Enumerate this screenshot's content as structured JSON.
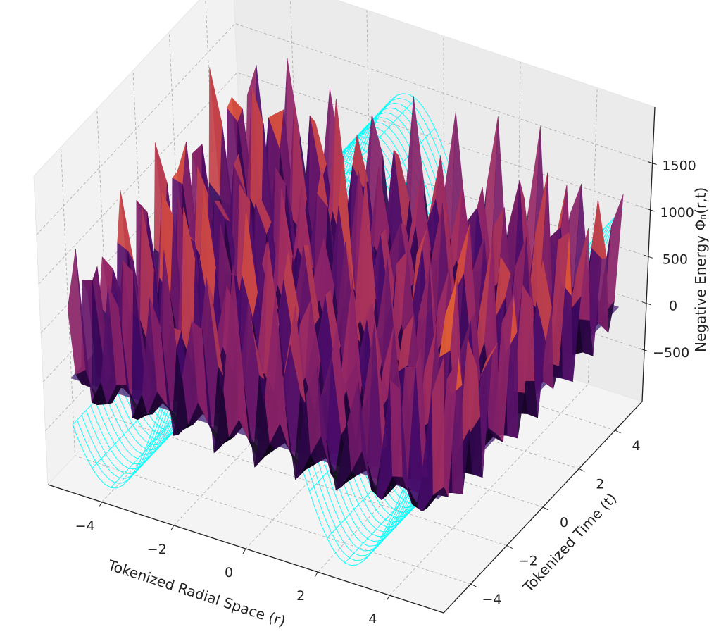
{
  "chart_data": {
    "type": "surface",
    "title": "",
    "xlabel": "Tokenized Radial Space (r)",
    "ylabel": "Tokenized Time (t)",
    "zlabel": "Negative Energy Φₙ(r,t)",
    "xlim": [
      -5.5,
      5.5
    ],
    "ylim": [
      -5.5,
      5.5
    ],
    "zlim": [
      -1050,
      2100
    ],
    "x_ticks": [
      -4,
      -2,
      0,
      2,
      4
    ],
    "x_tick_labels": [
      "−4",
      "−2",
      "0",
      "2",
      "4"
    ],
    "y_ticks": [
      -4,
      -2,
      0,
      2,
      4
    ],
    "y_tick_labels": [
      "−4",
      "−2",
      "0",
      "2",
      "4"
    ],
    "z_ticks": [
      -500,
      0,
      500,
      1000,
      1500
    ],
    "z_tick_labels": [
      "−500",
      "0",
      "500",
      "1000",
      "1500"
    ],
    "grid": true,
    "series": [
      {
        "name": "energy surface",
        "kind": "surface",
        "colormap": "inferno",
        "x_range": [
          -5,
          5
        ],
        "y_range": [
          -5,
          5
        ],
        "z_range": [
          -300,
          1900
        ]
      },
      {
        "name": "reference plane",
        "kind": "plane",
        "z": 0,
        "color": "#4b2a7a"
      },
      {
        "name": "wireframe",
        "kind": "wireframe",
        "color": "#00ffff",
        "z_range": [
          -1000,
          1500
        ]
      }
    ]
  }
}
